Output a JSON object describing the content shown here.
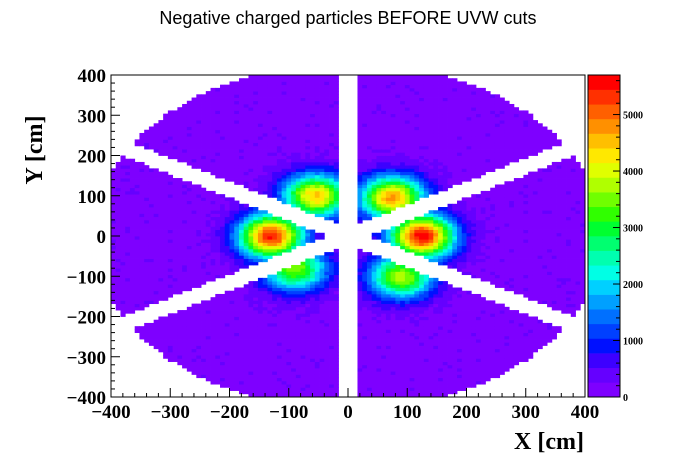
{
  "chart_data": {
    "type": "heatmap",
    "title": "Negative charged particles BEFORE UVW cuts",
    "xlabel": "X [cm]",
    "ylabel": "Y [cm]",
    "xlim": [
      -400,
      400
    ],
    "ylim": [
      -400,
      400
    ],
    "zlim": [
      0,
      5700
    ],
    "xticks": [
      "−400",
      "−300",
      "−200",
      "−100",
      "0",
      "100",
      "200",
      "300",
      "400"
    ],
    "yticks": [
      "400",
      "300",
      "200",
      "100",
      "0",
      "−100",
      "−200",
      "−300",
      "−400"
    ],
    "zticks": [
      "5000",
      "4000",
      "3000",
      "2000",
      "1000",
      "0"
    ],
    "colormap": [
      "#7e00ff",
      "#6500ff",
      "#3d00ff",
      "#0010ff",
      "#0040ff",
      "#0070ff",
      "#00a0ff",
      "#00d0ff",
      "#00ffe5",
      "#00ffb0",
      "#00ff70",
      "#00ff30",
      "#30ff00",
      "#70ff00",
      "#b0ff00",
      "#e0ff00",
      "#ffe800",
      "#ffbf00",
      "#ff9000",
      "#ff6000",
      "#ff3000",
      "#ff0000"
    ],
    "sectors": [
      {
        "center_angle_deg": 0,
        "peak": 5500,
        "hot_x": 125,
        "hot_y": 0
      },
      {
        "center_angle_deg": 60,
        "peak": 4600,
        "hot_x": 75,
        "hot_y": 95
      },
      {
        "center_angle_deg": 120,
        "peak": 4300,
        "hot_x": -55,
        "hot_y": 100
      },
      {
        "center_angle_deg": 180,
        "peak": 5300,
        "hot_x": -130,
        "hot_y": 0
      },
      {
        "center_angle_deg": 240,
        "peak": 3400,
        "hot_x": -90,
        "hot_y": -80
      },
      {
        "center_angle_deg": 300,
        "peak": 3600,
        "hot_x": 90,
        "hot_y": -100
      }
    ],
    "sector_extent": {
      "inner_radius": 40,
      "outer_radius": 400,
      "gap_halfwidth": 18
    },
    "background_level": 150,
    "grid": false
  }
}
